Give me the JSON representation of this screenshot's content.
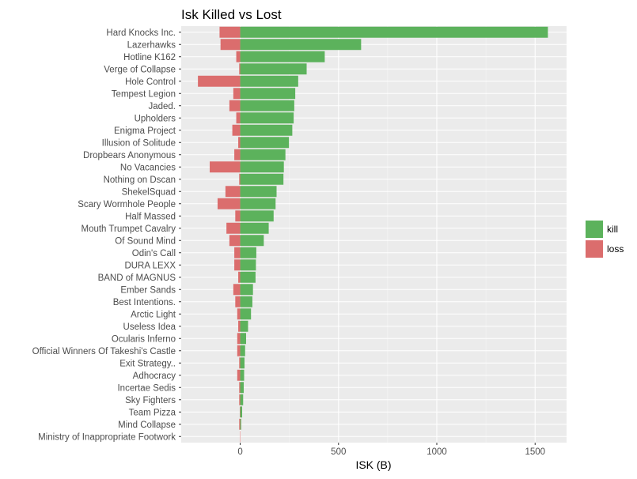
{
  "chart_data": {
    "type": "bar",
    "orientation": "horizontal",
    "stacked": "diverging",
    "title": "Isk Killed vs Lost",
    "xlabel": "ISK (B)",
    "ylabel": "",
    "xlim": [
      -300,
      1660
    ],
    "xticks": [
      0,
      500,
      1000,
      1500
    ],
    "xtick_labels": [
      "0",
      "500",
      "1000",
      "1500"
    ],
    "grid": true,
    "legend": {
      "position": "right",
      "entries": [
        "kill",
        "loss"
      ]
    },
    "categories": [
      "Hard Knocks Inc.",
      "Lazerhawks",
      "Hotline K162",
      "Verge of Collapse",
      "Hole Control",
      "Tempest Legion",
      "Jaded.",
      "Upholders",
      "Enigma Project",
      "Illusion of Solitude",
      "Dropbears Anonymous",
      "No Vacancies",
      "Nothing on Dscan",
      "ShekelSquad",
      "Scary Wormhole People",
      "Half Massed",
      "Mouth Trumpet Cavalry",
      "Of Sound Mind",
      "Odin's Call",
      "DURA LEXX",
      "BAND of MAGNUS",
      "Ember Sands",
      "Best Intentions.",
      "Arctic Light",
      "Useless Idea",
      "Ocularis Inferno",
      "Official Winners Of Takeshi's Castle",
      "Exit Strategy..",
      "Adhocracy",
      "Incertae Sedis",
      "Sky Fighters",
      "Team Pizza",
      "Mind Collapse",
      "Ministry of Inappropriate Footwork"
    ],
    "series": [
      {
        "name": "kill",
        "color": "#5cb25c",
        "values": [
          1565,
          615,
          430,
          338,
          295,
          280,
          275,
          272,
          265,
          248,
          230,
          222,
          220,
          185,
          180,
          170,
          145,
          120,
          82,
          80,
          78,
          65,
          62,
          55,
          40,
          30,
          25,
          22,
          20,
          18,
          15,
          10,
          5,
          0
        ]
      },
      {
        "name": "loss",
        "color": "#db6d6d",
        "values": [
          -105,
          -100,
          -20,
          -5,
          -215,
          -35,
          -55,
          -20,
          -40,
          -10,
          -30,
          -155,
          -5,
          -75,
          -115,
          -25,
          -70,
          -55,
          -30,
          -30,
          -10,
          -35,
          -25,
          -15,
          -10,
          -15,
          -15,
          -5,
          -15,
          -5,
          -5,
          -2,
          -5,
          -2
        ]
      }
    ]
  }
}
